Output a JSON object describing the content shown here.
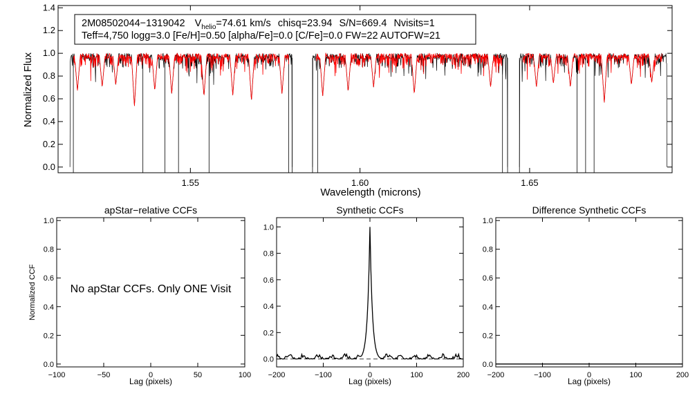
{
  "chart_data": [
    {
      "id": "spectrum",
      "type": "line",
      "xlabel": "Wavelength (microns)",
      "ylabel": "Normalized Flux",
      "xlim": [
        1.511,
        1.692
      ],
      "ylim": [
        -0.05,
        1.42
      ],
      "x_ticks": [
        1.55,
        1.6,
        1.65
      ],
      "x_tick_labels": [
        "1.55",
        "1.60",
        "1.65"
      ],
      "y_ticks": [
        0.0,
        0.2,
        0.4,
        0.6,
        0.8,
        1.0,
        1.2,
        1.4
      ],
      "y_tick_labels": [
        "0.0",
        "0.2",
        "0.4",
        "0.6",
        "0.8",
        "1.0",
        "1.2",
        "1.4"
      ],
      "info_box": {
        "object": "2M08502044−1319042",
        "v": "V",
        "v_sub": "helio",
        "vhelio": "=74.61 km/s",
        "chisq": "chisq=23.94",
        "snr": "S/N=669.4",
        "nvisits": "Nvisits=1",
        "params": "Teff=4,750 logg=3.0 [Fe/H]=0.50 [alpha/Fe]=0.0 [C/Fe]=0.0 FW=22 AUTOFW=21"
      },
      "chips": [
        [
          1.5145,
          1.58
        ],
        [
          1.586,
          1.6435
        ],
        [
          1.647,
          1.6905
        ]
      ],
      "model_chips": [
        [
          1.5155,
          1.579
        ],
        [
          1.587,
          1.642
        ],
        [
          1.648,
          1.689
        ]
      ],
      "drops": [
        1.5155,
        1.536,
        1.5425,
        1.5465,
        1.5555,
        1.579,
        1.58,
        1.586,
        1.5875,
        1.642,
        1.6435,
        1.647,
        1.664,
        1.6665,
        1.669
      ],
      "absorption_lines": [
        [
          1.5167,
          0.67
        ],
        [
          1.524,
          0.7
        ],
        [
          1.528,
          0.72
        ],
        [
          1.5335,
          0.53
        ],
        [
          1.5395,
          0.67
        ],
        [
          1.5445,
          0.64
        ],
        [
          1.554,
          0.62
        ],
        [
          1.5625,
          0.63
        ],
        [
          1.568,
          0.58
        ],
        [
          1.577,
          0.64
        ],
        [
          1.589,
          0.62
        ],
        [
          1.5965,
          0.66
        ],
        [
          1.604,
          0.7
        ],
        [
          1.616,
          0.64
        ],
        [
          1.6385,
          0.7
        ],
        [
          1.652,
          0.7
        ],
        [
          1.657,
          0.73
        ],
        [
          1.662,
          0.7
        ],
        [
          1.672,
          0.56
        ],
        [
          1.68,
          0.72
        ],
        [
          1.686,
          0.74
        ]
      ],
      "series": [
        {
          "color": "#000000"
        },
        {
          "color": "#ff0000"
        }
      ]
    },
    {
      "id": "apstar-ccf",
      "type": "line",
      "title": "apStar−relative CCFs",
      "xlabel": "Lag (pixels)",
      "ylabel": "Normalized CCF",
      "xlim": [
        -100,
        100
      ],
      "ylim": [
        -0.02,
        1.02
      ],
      "x_ticks": [
        -100,
        -50,
        0,
        50,
        100
      ],
      "x_tick_labels": [
        "−100",
        "−50",
        "0",
        "50",
        "100"
      ],
      "y_ticks": [
        0.0,
        0.2,
        0.4,
        0.6,
        0.8,
        1.0
      ],
      "y_tick_labels": [
        "0.0",
        "0.2",
        "0.4",
        "0.6",
        "0.8",
        "1.0"
      ],
      "annotation": "No apStar CCFs.  Only ONE Visit",
      "series": []
    },
    {
      "id": "synthetic-ccf",
      "type": "line",
      "title": "Synthetic CCFs",
      "xlabel": "Lag (pixels)",
      "xlim": [
        -200,
        200
      ],
      "ylim": [
        -0.06,
        1.07
      ],
      "x_ticks": [
        -200,
        -100,
        0,
        100,
        200
      ],
      "x_tick_labels": [
        "−200",
        "−100",
        "0",
        "100",
        "200"
      ],
      "y_ticks": [
        0.0,
        0.2,
        0.4,
        0.6,
        0.8,
        1.0
      ],
      "y_tick_labels": [
        "0.0",
        "0.2",
        "0.4",
        "0.6",
        "0.8",
        "1.0"
      ],
      "baseline": 0.0,
      "peak": {
        "x": 0,
        "y": 1.0
      },
      "series": [
        {
          "color": "#000000"
        }
      ]
    },
    {
      "id": "difference-ccf",
      "type": "line",
      "title": "Difference Synthetic CCFs",
      "xlabel": "Lag (pixels)",
      "xlim": [
        -200,
        200
      ],
      "ylim": [
        -0.02,
        1.02
      ],
      "x_ticks": [
        -200,
        -100,
        0,
        100,
        200
      ],
      "x_tick_labels": [
        "−200",
        "−100",
        "0",
        "100",
        "200"
      ],
      "y_ticks": [
        0.0,
        0.2,
        0.4,
        0.6,
        0.8,
        1.0
      ],
      "y_tick_labels": [
        "0.0",
        "0.2",
        "0.4",
        "0.6",
        "0.8",
        "1.0"
      ],
      "series": [
        {
          "color": "#000000",
          "y": 0.0
        }
      ]
    }
  ]
}
